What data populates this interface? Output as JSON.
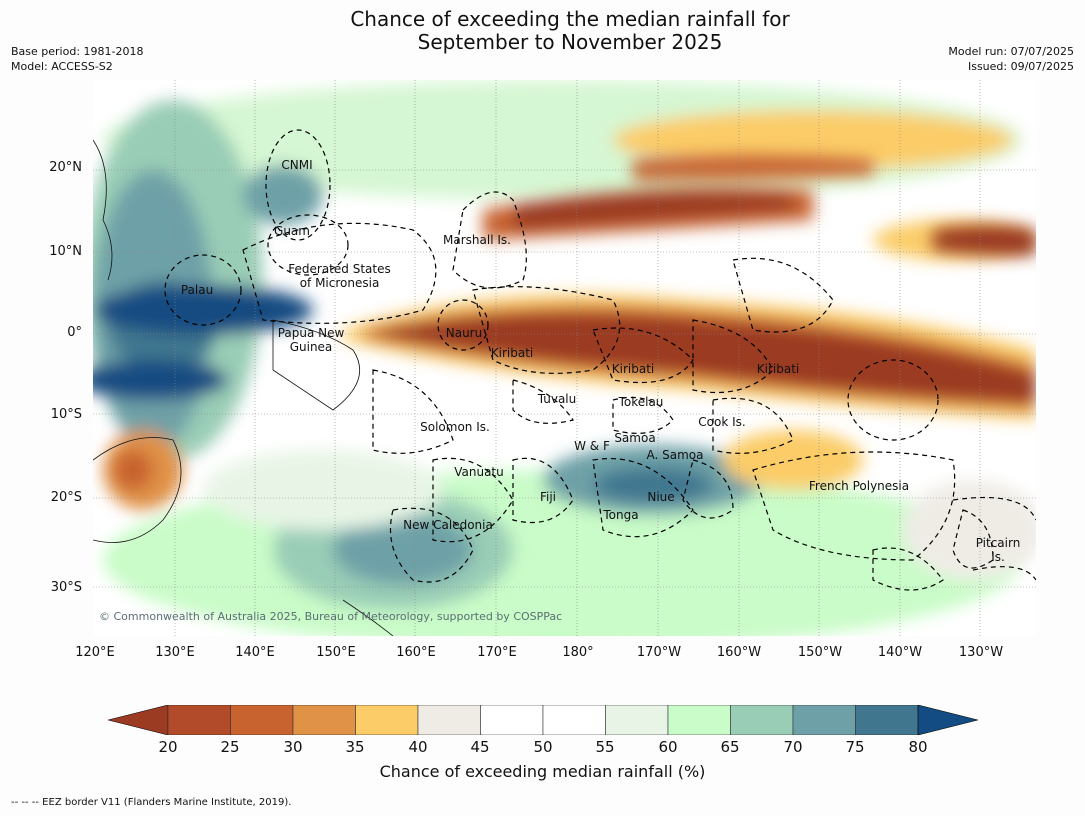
{
  "header": {
    "title_line1": "Chance of exceeding the median rainfall for",
    "title_line2": "September to November 2025",
    "base_period": "Base period: 1981-2018",
    "model": "Model: ACCESS-S2",
    "model_run": "Model run: 07/07/2025",
    "issued": "Issued: 09/07/2025"
  },
  "map": {
    "lat_ticks": [
      "20°N",
      "10°N",
      "0°",
      "10°S",
      "20°S",
      "30°S"
    ],
    "lon_ticks": [
      "120°E",
      "130°E",
      "140°E",
      "150°E",
      "160°E",
      "170°E",
      "180°",
      "170°W",
      "160°W",
      "150°W",
      "140°W",
      "130°W"
    ],
    "region_labels": [
      "CNMI",
      "Guam",
      "Marshall Is.",
      "Federated States\nof Micronesia",
      "Palau",
      "Papua New\nGuinea",
      "Nauru",
      "Kiribati",
      "Kiribati",
      "Kiribati",
      "Tuvalu",
      "Tokelau",
      "Cook Is.",
      "Solomon Is.",
      "Samoa",
      "W & F",
      "A. Samoa",
      "Vanuatu",
      "Fiji",
      "Niue",
      "French Polynesia",
      "Tonga",
      "New Caledonia",
      "Pitcairn\nIs."
    ],
    "copyright": "© Commonwealth of Australia 2025, Bureau of Meteorology, supported by COSPPac"
  },
  "colorbar": {
    "tick_labels": [
      "20",
      "25",
      "30",
      "35",
      "40",
      "45",
      "50",
      "55",
      "60",
      "65",
      "70",
      "75",
      "80"
    ],
    "colors": [
      "#9a3b22",
      "#b24b29",
      "#c8622f",
      "#e09246",
      "#fbcc67",
      "#efece6",
      "#ffffff",
      "#ffffff",
      "#e8f5e6",
      "#c9fcc8",
      "#9acdb6",
      "#6ea1a7",
      "#40778f",
      "#124c82"
    ],
    "title": "Chance of exceeding median rainfall (%)"
  },
  "footnote": "--  --  -- EEZ border V11 (Flanders Marine Institute, 2019)."
}
